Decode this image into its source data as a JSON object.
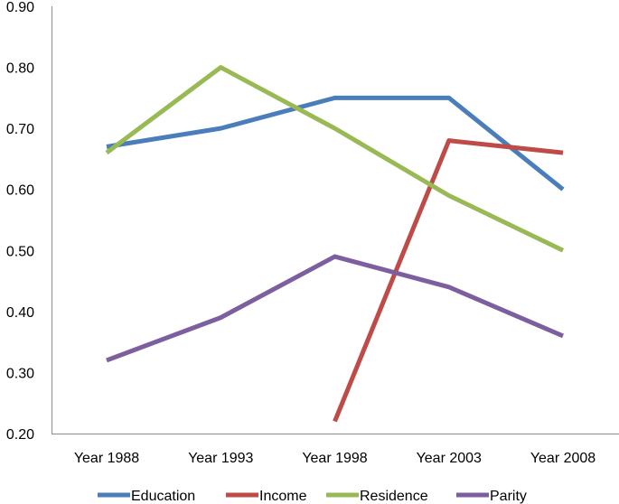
{
  "chart_data": {
    "type": "line",
    "categories": [
      "Year 1988",
      "Year 1993",
      "Year 1998",
      "Year 2003",
      "Year 2008"
    ],
    "y_ticks": [
      "0.20",
      "0.30",
      "0.40",
      "0.50",
      "0.60",
      "0.70",
      "0.80",
      "0.90"
    ],
    "ylim": [
      0.2,
      0.9
    ],
    "grid": false,
    "legend_position": "bottom",
    "series": [
      {
        "name": "Education",
        "color": "#4a7ebb",
        "values": [
          0.67,
          0.7,
          0.75,
          0.75,
          0.6
        ]
      },
      {
        "name": "Income",
        "color": "#be4b48",
        "values": [
          null,
          null,
          0.22,
          0.68,
          0.66
        ]
      },
      {
        "name": "Residence",
        "color": "#98b954",
        "values": [
          0.66,
          0.8,
          0.7,
          0.59,
          0.5
        ]
      },
      {
        "name": "Parity",
        "color": "#7d5fa0",
        "values": [
          0.32,
          0.39,
          0.49,
          0.44,
          0.36
        ]
      }
    ]
  }
}
